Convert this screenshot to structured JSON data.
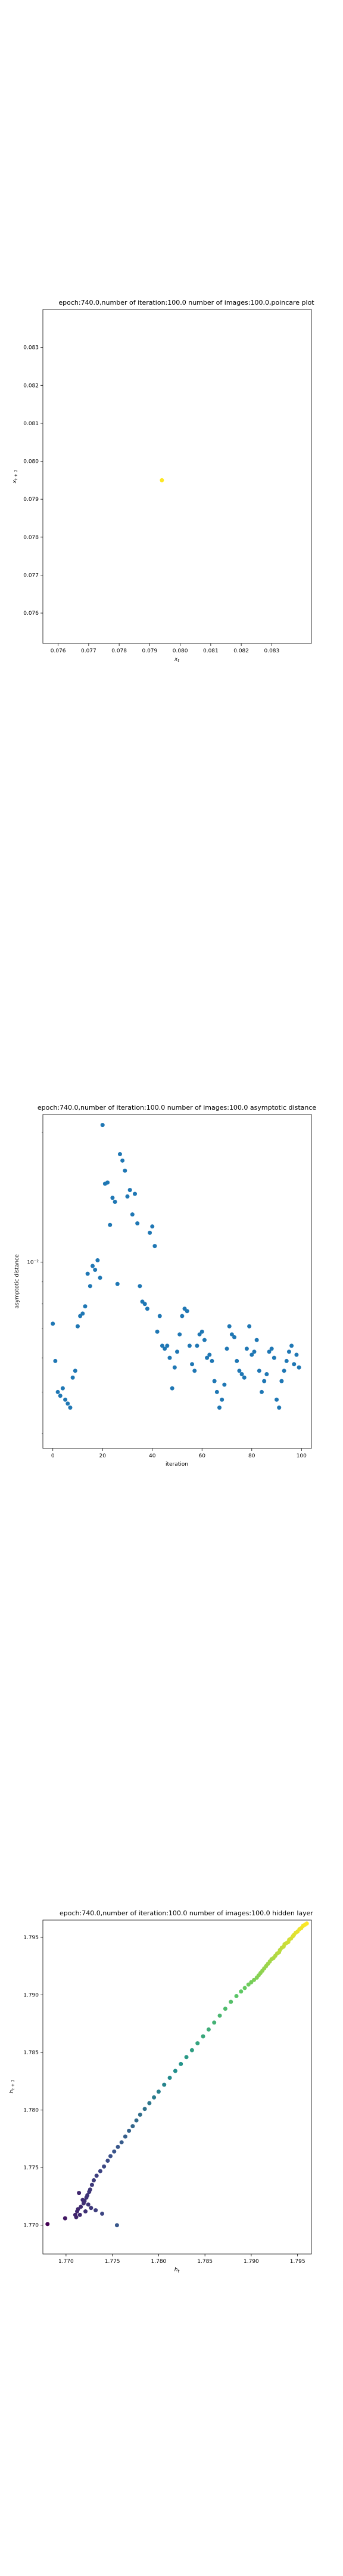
{
  "chart_data": [
    {
      "type": "scatter",
      "title": "epoch:740.0,number of iteration:100.0 number of images:100.0,poincare plot",
      "xlabel": "x_t",
      "ylabel": "x_{t+1}",
      "xlim": [
        0.0755,
        0.0843
      ],
      "ylim": [
        0.0752,
        0.084
      ],
      "xticks": [
        0.076,
        0.077,
        0.078,
        0.079,
        0.08,
        0.081,
        0.082,
        0.083
      ],
      "yticks": [
        0.076,
        0.077,
        0.078,
        0.079,
        0.08,
        0.081,
        0.082,
        0.083
      ],
      "tick_labels": [
        "0.076",
        "0.077",
        "0.078",
        "0.079",
        "0.080",
        "0.081",
        "0.082",
        "0.083"
      ],
      "point_color": "#fde725",
      "points": [
        [
          0.0794,
          0.0795
        ]
      ]
    },
    {
      "type": "scatter",
      "title": "epoch:740.0,number of iteration:100.0  number of images:100.0 asymptotic distance",
      "xlabel": "iteration",
      "ylabel": "asymptotic distance",
      "yscale": "log",
      "xlim": [
        -4,
        104
      ],
      "ylim": [
        0.0037,
        0.022
      ],
      "xticks": [
        0,
        20,
        40,
        60,
        80,
        100
      ],
      "xtick_labels": [
        "0",
        "20",
        "40",
        "60",
        "80",
        "100"
      ],
      "ytick_label": "10⁻²",
      "ytick_value": 0.01,
      "point_color": "#1f77b4",
      "x": [
        0,
        1,
        2,
        3,
        4,
        5,
        6,
        7,
        8,
        9,
        10,
        11,
        12,
        13,
        14,
        15,
        16,
        17,
        18,
        19,
        20,
        21,
        22,
        23,
        24,
        25,
        26,
        27,
        28,
        29,
        30,
        31,
        32,
        33,
        34,
        35,
        36,
        37,
        38,
        39,
        40,
        41,
        42,
        43,
        44,
        45,
        46,
        47,
        48,
        49,
        50,
        51,
        52,
        53,
        54,
        55,
        56,
        57,
        58,
        59,
        60,
        61,
        62,
        63,
        64,
        65,
        66,
        67,
        68,
        69,
        70,
        71,
        72,
        73,
        74,
        75,
        76,
        77,
        78,
        79,
        80,
        81,
        82,
        83,
        84,
        85,
        86,
        87,
        88,
        89,
        90,
        91,
        92,
        93,
        94,
        95,
        96,
        97,
        98,
        99
      ],
      "y": [
        0.0072,
        0.0059,
        0.005,
        0.0049,
        0.0051,
        0.0048,
        0.0047,
        0.0046,
        0.0054,
        0.0056,
        0.0071,
        0.0075,
        0.0076,
        0.0079,
        0.0094,
        0.0088,
        0.0098,
        0.0096,
        0.0101,
        0.0092,
        0.0208,
        0.0152,
        0.0153,
        0.0122,
        0.0141,
        0.0138,
        0.0089,
        0.0178,
        0.0172,
        0.0163,
        0.0142,
        0.0147,
        0.0129,
        0.0144,
        0.0123,
        0.0088,
        0.0081,
        0.008,
        0.0078,
        0.0117,
        0.0121,
        0.0109,
        0.0069,
        0.0075,
        0.0064,
        0.0063,
        0.0064,
        0.006,
        0.0051,
        0.0057,
        0.0062,
        0.0068,
        0.0075,
        0.0078,
        0.0077,
        0.0064,
        0.0058,
        0.0056,
        0.0064,
        0.0068,
        0.0069,
        0.0066,
        0.006,
        0.0061,
        0.0059,
        0.0053,
        0.005,
        0.0046,
        0.0048,
        0.0052,
        0.0063,
        0.0071,
        0.0068,
        0.0067,
        0.0059,
        0.0056,
        0.0055,
        0.0054,
        0.0063,
        0.0071,
        0.0061,
        0.0062,
        0.0066,
        0.0056,
        0.005,
        0.0053,
        0.0055,
        0.0062,
        0.0063,
        0.006,
        0.0048,
        0.0046,
        0.0053,
        0.0056,
        0.0059,
        0.0062,
        0.0064,
        0.0058,
        0.0061,
        0.0057
      ]
    },
    {
      "type": "scatter",
      "title": "epoch:740.0,number of iteration:100.0  number of images:100.0 hidden layer",
      "xlabel": "h_t",
      "ylabel": "h_{t+1}",
      "xlim": [
        1.7675,
        1.7965
      ],
      "ylim": [
        1.7675,
        1.7965
      ],
      "xticks": [
        1.77,
        1.775,
        1.78,
        1.785,
        1.79,
        1.795
      ],
      "xtick_labels": [
        "1.770",
        "1.775",
        "1.780",
        "1.785",
        "1.790",
        "1.795"
      ],
      "yticks": [
        1.77,
        1.775,
        1.78,
        1.785,
        1.79,
        1.795
      ],
      "ytick_labels": [
        "1.770",
        "1.775",
        "1.780",
        "1.785",
        "1.790",
        "1.795"
      ],
      "colormap": "viridis",
      "x": [
        1.768,
        1.7699,
        1.771,
        1.7712,
        1.7713,
        1.7716,
        1.7719,
        1.772,
        1.7722,
        1.7723,
        1.7725,
        1.7726,
        1.7728,
        1.773,
        1.7733,
        1.7737,
        1.7741,
        1.7745,
        1.7748,
        1.7752,
        1.7756,
        1.776,
        1.7764,
        1.7768,
        1.7772,
        1.7776,
        1.778,
        1.7785,
        1.779,
        1.7795,
        1.78,
        1.7806,
        1.7812,
        1.7818,
        1.7824,
        1.783,
        1.7836,
        1.7842,
        1.7848,
        1.7854,
        1.786,
        1.7866,
        1.7872,
        1.7878,
        1.7884,
        1.7889,
        1.7893,
        1.7897,
        1.79,
        1.7903,
        1.7906,
        1.7908,
        1.791,
        1.7912,
        1.7914,
        1.7916,
        1.7918,
        1.792,
        1.7922,
        1.7924,
        1.7926,
        1.7928,
        1.793,
        1.7931,
        1.7933,
        1.7935,
        1.7936,
        1.7938,
        1.794,
        1.7941,
        1.7943,
        1.7945,
        1.7946,
        1.7948,
        1.795,
        1.7952,
        1.7954,
        1.7956,
        1.7958,
        1.796,
        1.7714,
        1.7718,
        1.7724,
        1.7732,
        1.7739,
        1.7755,
        1.7727,
        1.7721,
        1.7715,
        1.7711
      ],
      "y": [
        1.7701,
        1.7706,
        1.7709,
        1.7712,
        1.7714,
        1.7716,
        1.7719,
        1.7721,
        1.7724,
        1.7726,
        1.7729,
        1.7731,
        1.7735,
        1.7739,
        1.7743,
        1.7747,
        1.7751,
        1.7756,
        1.776,
        1.7764,
        1.7768,
        1.7772,
        1.7777,
        1.7782,
        1.7786,
        1.7791,
        1.7796,
        1.7801,
        1.7806,
        1.7811,
        1.7816,
        1.7822,
        1.7828,
        1.7834,
        1.784,
        1.7846,
        1.7852,
        1.7858,
        1.7864,
        1.787,
        1.7876,
        1.7882,
        1.7888,
        1.7894,
        1.7899,
        1.7903,
        1.7906,
        1.7909,
        1.7911,
        1.7913,
        1.7915,
        1.7917,
        1.7919,
        1.7921,
        1.7923,
        1.7925,
        1.7927,
        1.7929,
        1.7931,
        1.7932,
        1.7934,
        1.7936,
        1.7937,
        1.7939,
        1.7941,
        1.7942,
        1.7944,
        1.7945,
        1.7946,
        1.7948,
        1.7949,
        1.7951,
        1.7952,
        1.7954,
        1.7955,
        1.7957,
        1.7958,
        1.796,
        1.7961,
        1.7962,
        1.7728,
        1.7722,
        1.7718,
        1.7713,
        1.771,
        1.77,
        1.7715,
        1.7712,
        1.7709,
        1.7707
      ]
    }
  ]
}
